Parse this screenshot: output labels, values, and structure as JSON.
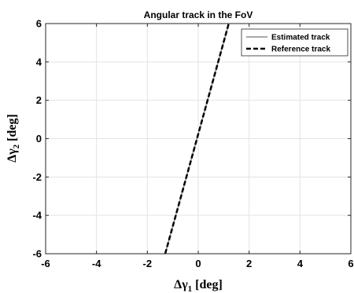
{
  "chart_data": {
    "type": "line",
    "title": "Angular track in the FoV",
    "xlabel": "Δγ1 [deg]",
    "xlabel_main": "Δγ",
    "xlabel_sub": "1",
    "xlabel_unit": " [deg]",
    "ylabel": "Δγ2 [deg]",
    "ylabel_main": "Δγ",
    "ylabel_sub": "2",
    "ylabel_unit": " [deg]",
    "xlim": [
      -6,
      6
    ],
    "ylim": [
      -6,
      6
    ],
    "xticks": [
      "-6",
      "-4",
      "-2",
      "0",
      "2",
      "4",
      "6"
    ],
    "yticks": [
      "-6",
      "-4",
      "-2",
      "0",
      "2",
      "4",
      "6"
    ],
    "grid": true,
    "legend_placement": "top-right",
    "series": [
      {
        "name": "Estimated track",
        "color": "#8c8c8c",
        "style": "solid",
        "x": [
          -1.3,
          1.2
        ],
        "y": [
          -6,
          6
        ]
      },
      {
        "name": "Reference track",
        "color": "#000000",
        "style": "dashed",
        "x": [
          -1.3,
          1.2
        ],
        "y": [
          -6,
          6
        ]
      }
    ]
  }
}
